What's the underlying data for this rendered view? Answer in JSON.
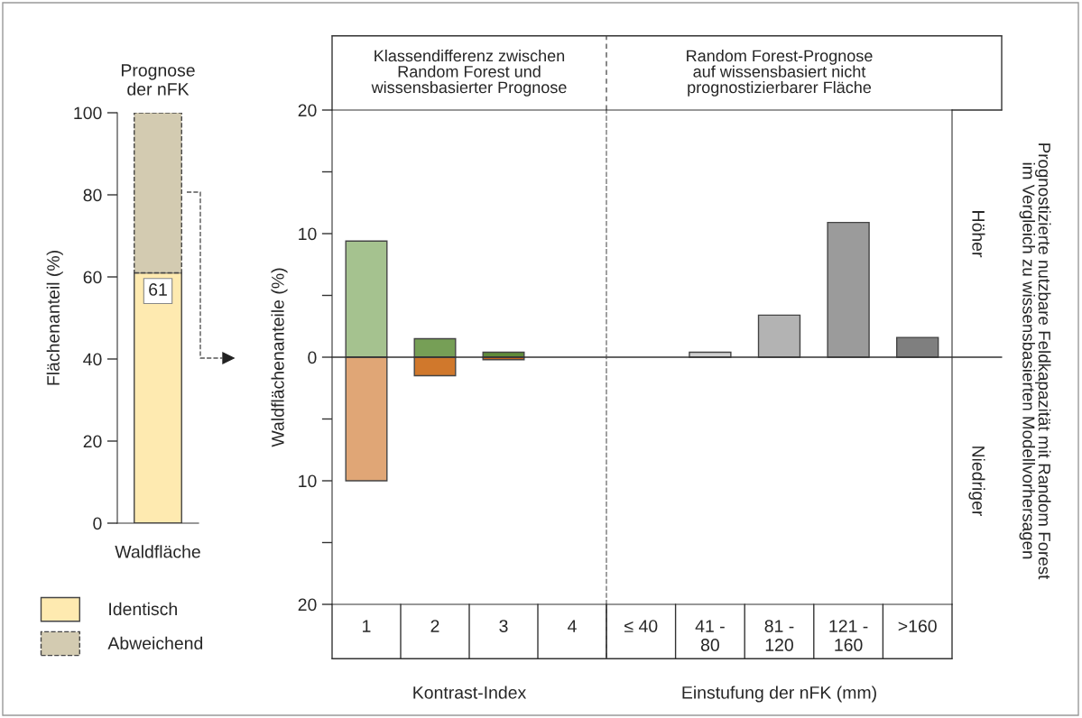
{
  "chart_data": [
    {
      "type": "bar",
      "stacked": true,
      "title": "Prognose\nder nFK",
      "xlabel": "Waldfläche",
      "ylabel": "Flächenanteil (%)",
      "categories": [
        null
      ],
      "series": [
        {
          "name": "Identisch",
          "color": "#feeab0",
          "values": [
            61
          ],
          "value_labels": [
            "61"
          ]
        },
        {
          "name": "Abweichend",
          "color": "#d3cbb1",
          "values": [
            39
          ],
          "line_style": "dashed"
        }
      ],
      "ylim": [
        0,
        100
      ],
      "yticks": [
        0,
        20,
        40,
        60,
        80,
        100
      ],
      "legend": "bottom"
    },
    {
      "type": "bar",
      "title": "Klassendifferenz zwischen\nRandom Forest und\nwissensbasierter Prognose",
      "xlabel": "Kontrast-Index",
      "ylabel": "Waldflächenanteile (%)",
      "categories": [
        "1",
        "2",
        "3",
        "4"
      ],
      "stacked": true,
      "series": [
        {
          "values": [
            9.4,
            1.5,
            0.4,
            null
          ],
          "colors": [
            "#a5c28f",
            "#769f56",
            "#5f8b3a",
            null
          ]
        },
        {
          "values": [
            -10,
            -1.5,
            -0.2,
            null
          ],
          "colors": [
            "#e0a676",
            "#d0782c",
            "#c8641e",
            null
          ]
        }
      ],
      "ylim": [
        -20,
        20
      ],
      "yticks": [
        {
          "value": -20,
          "label": "20"
        },
        {
          "value": -15,
          "label": null
        },
        {
          "value": -10,
          "label": "10"
        },
        {
          "value": -5,
          "label": null
        },
        0,
        {
          "value": 5,
          "label": null
        },
        10,
        {
          "value": 15,
          "label": null
        },
        20
      ],
      "ref_lines": [
        {
          "axis": "y",
          "value": 0,
          "color": "#333333"
        }
      ]
    },
    {
      "type": "bar",
      "title": "Random Forest-Prognose\nauf wissensbasiert nicht\nprognostizierbarer Fläche",
      "xlabel": "Einstufung der nFK (mm)",
      "y2label": "Prognostizierte nutzbare Feldkapazität mit Random Forest\nim Vergleich zu wissensbasierten Modellvorhersagen",
      "categories": [
        "≤ 40",
        "41 -\n80",
        "81 -\n120",
        "121 -\n160",
        ">160"
      ],
      "series": [
        {
          "values": [
            null,
            0.4,
            3.4,
            10.9,
            1.6
          ],
          "colors": [
            null,
            "#cfcfcf",
            "#b3b3b3",
            "#9b9b9b",
            "#7f7f7f"
          ]
        }
      ],
      "ylim": [
        -20,
        20
      ],
      "tick_labels": "x",
      "ref_lines": [
        {
          "axis": "y",
          "value": 0,
          "color": "#333333"
        }
      ],
      "annotations": [
        "Höher",
        "Niedriger"
      ]
    }
  ]
}
